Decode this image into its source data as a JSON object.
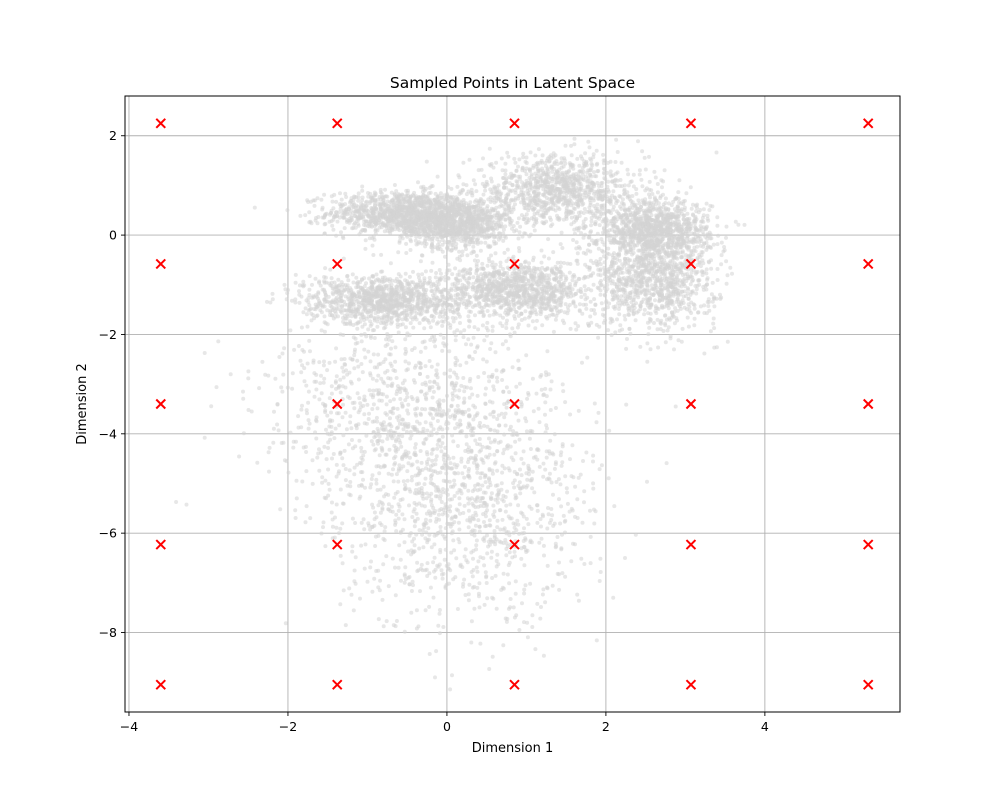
{
  "chart_data": {
    "type": "scatter",
    "title": "Sampled Points in Latent Space",
    "xlabel": "Dimension 1",
    "ylabel": "Dimension 2",
    "xlim": [
      -4.05,
      5.7
    ],
    "ylim": [
      -9.6,
      2.8
    ],
    "grid": true,
    "xticks": [
      -4,
      -2,
      0,
      2,
      4
    ],
    "yticks": [
      2,
      0,
      -2,
      -4,
      -6,
      -8
    ],
    "xtick_labels": [
      "−4",
      "−2",
      "0",
      "2",
      "4"
    ],
    "ytick_labels": [
      "2",
      "0",
      "−2",
      "−4",
      "−6",
      "−8"
    ],
    "series": [
      {
        "role": "latent-cloud",
        "marker": "dot",
        "color": "#d3d3d3",
        "n_points": 9000,
        "clusters": [
          {
            "center": [
              -0.6,
              0.45
            ],
            "spread": [
              0.45,
              0.22
            ]
          },
          {
            "center": [
              0.1,
              0.25
            ],
            "spread": [
              0.35,
              0.25
            ]
          },
          {
            "center": [
              1.4,
              0.9
            ],
            "spread": [
              0.55,
              0.35
            ]
          },
          {
            "center": [
              2.6,
              0.1
            ],
            "spread": [
              0.35,
              0.3
            ]
          },
          {
            "center": [
              2.6,
              -0.9
            ],
            "spread": [
              0.4,
              0.5
            ]
          },
          {
            "center": [
              -0.8,
              -1.3
            ],
            "spread": [
              0.5,
              0.25
            ]
          },
          {
            "center": [
              0.9,
              -1.1
            ],
            "spread": [
              0.45,
              0.3
            ]
          },
          {
            "center": [
              -0.5,
              -3.5
            ],
            "spread": [
              0.9,
              1.2
            ]
          },
          {
            "center": [
              0.3,
              -5.5
            ],
            "spread": [
              0.8,
              1.2
            ]
          }
        ]
      },
      {
        "role": "sampled-grid",
        "marker": "x",
        "color": "#ff0000",
        "x_values": [
          -3.6,
          -1.38,
          0.85,
          3.07,
          5.3
        ],
        "y_values": [
          2.25,
          -0.58,
          -3.4,
          -6.23,
          -9.05
        ]
      }
    ]
  }
}
